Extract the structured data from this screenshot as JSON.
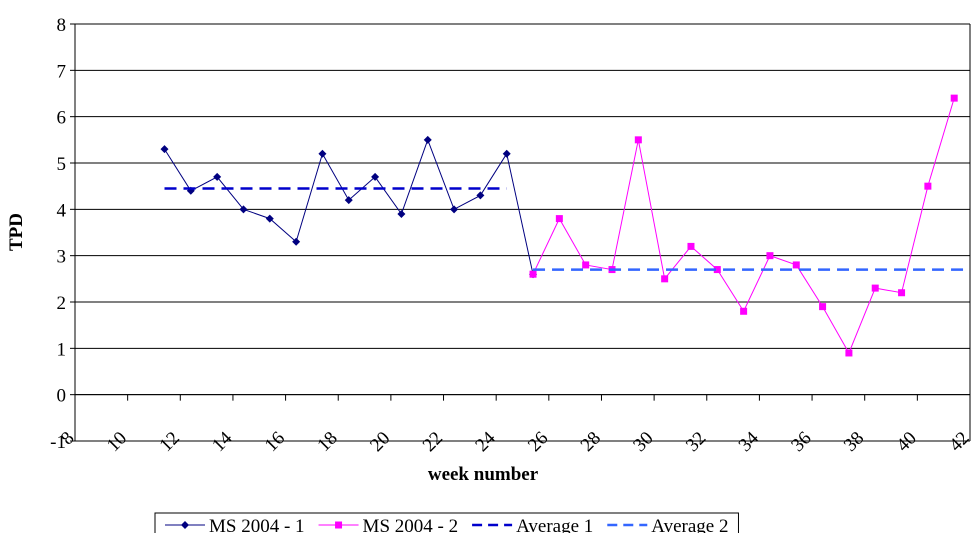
{
  "chart_data": {
    "type": "line",
    "x_label": "week number",
    "y_label": "TPD",
    "xlim": [
      8,
      42
    ],
    "xticks": [
      8,
      10,
      12,
      14,
      16,
      18,
      20,
      22,
      24,
      26,
      28,
      30,
      32,
      34,
      36,
      38,
      40,
      42
    ],
    "ylim": [
      -1,
      8
    ],
    "yticks": [
      -1,
      0,
      1,
      2,
      3,
      4,
      5,
      6,
      7,
      8
    ],
    "grid": true,
    "legend": "bottom",
    "series": [
      {
        "name": "MS 2004 - 1",
        "color": "#000080",
        "marker": "diamond",
        "dash": false,
        "x": [
          11.4,
          12.4,
          13.4,
          14.4,
          15.4,
          16.4,
          17.4,
          18.4,
          19.4,
          20.4,
          21.4,
          22.4,
          23.4,
          24.4,
          25.4
        ],
        "values": [
          5.3,
          4.4,
          4.7,
          4.0,
          3.8,
          3.3,
          5.2,
          4.2,
          4.7,
          3.9,
          5.5,
          4.0,
          4.3,
          5.2,
          2.6
        ]
      },
      {
        "name": "MS 2004 - 2",
        "color": "#ff00ff",
        "marker": "square",
        "dash": false,
        "x": [
          25.4,
          26.4,
          27.4,
          28.4,
          29.4,
          30.4,
          31.4,
          32.4,
          33.4,
          34.4,
          35.4,
          36.4,
          37.4,
          38.4,
          39.4,
          40.4,
          41.4
        ],
        "values": [
          2.6,
          3.8,
          2.8,
          2.7,
          5.5,
          2.5,
          3.2,
          2.7,
          1.8,
          3.0,
          2.8,
          1.9,
          0.9,
          2.3,
          2.2,
          4.5,
          6.4
        ]
      },
      {
        "name": "Average 1",
        "color": "#0000cc",
        "marker": "none",
        "dash": true,
        "x": [
          11.4,
          24.4
        ],
        "values": [
          4.45,
          4.45
        ]
      },
      {
        "name": "Average 2",
        "color": "#3366ff",
        "marker": "none",
        "dash": true,
        "x": [
          25.4,
          42
        ],
        "values": [
          2.7,
          2.7
        ]
      }
    ]
  }
}
